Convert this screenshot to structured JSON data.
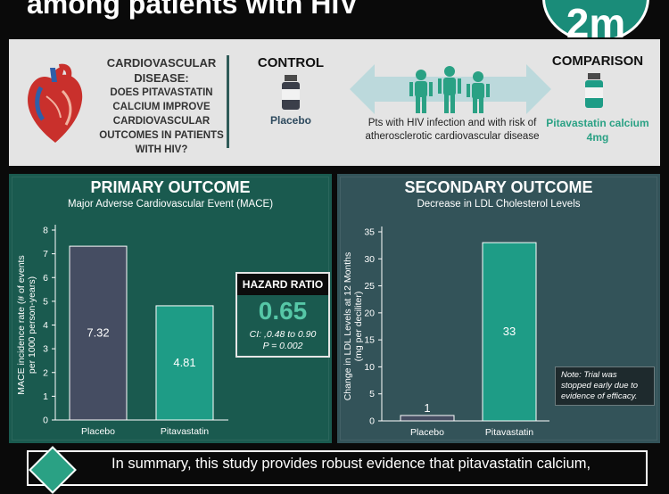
{
  "header": {
    "title": "among patients with HIV",
    "logo_text": "2m",
    "colors": {
      "background": "#0a0a0a",
      "logo": "#1a8c79"
    }
  },
  "design": {
    "question_title": "CARDIOVASCULAR DISEASE:",
    "question_text": "DOES PITAVASTATIN CALCIUM IMPROVE CARDIOVASCULAR OUTCOMES IN PATIENTS WITH HIV?",
    "control_label": "CONTROL",
    "control_drug": "Placebo",
    "population": "Pts with HIV infection and with risk of atherosclerotic cardiovascular disease",
    "comparison_label": "COMPARISON",
    "comparison_drug": "Pitavastatin calcium 4mg",
    "icons": [
      "heart-icon",
      "placebo-bottle-icon",
      "double-arrow-icon",
      "people-icon",
      "drug-bottle-icon"
    ]
  },
  "primary": {
    "title": "PRIMARY OUTCOME",
    "subtitle": "Major Adverse Cardiovascular Event (MACE)"
  },
  "secondary": {
    "title": "SECONDARY OUTCOME",
    "subtitle": "Decrease in LDL Cholesterol Levels"
  },
  "hazard": {
    "title": "HAZARD RATIO",
    "value": "0.65",
    "ci": "CI: ,0.48 to 0.90",
    "p": "P = 0.002"
  },
  "note": "Note: Trial was stopped early due to evidence of efficacy.",
  "summary": {
    "text": "In summary, this study provides robust evidence that pitavastatin calcium,"
  },
  "chart_data": [
    {
      "type": "bar",
      "title": "PRIMARY OUTCOME",
      "subtitle": "Major Adverse Cardiovascular Event (MACE)",
      "categories": [
        "Placebo",
        "Pitavastatin"
      ],
      "values": [
        7.32,
        4.81
      ],
      "value_labels": [
        "7.32",
        "4.81"
      ],
      "ylabel": "MACE incidence rate (# of events per 1000 person-years)",
      "ylabel_lines": [
        "MACE incidence rate (# of events",
        "per 1000 person-years)"
      ],
      "ylim": [
        0,
        8
      ],
      "yticks": [
        0,
        1,
        2,
        3,
        4,
        5,
        6,
        7,
        8
      ],
      "colors": [
        "#454d62",
        "#1e9c86"
      ],
      "grid": false
    },
    {
      "type": "bar",
      "title": "SECONDARY OUTCOME",
      "subtitle": "Decrease in LDL Cholesterol Levels",
      "categories": [
        "Placebo",
        "Pitavastatin"
      ],
      "values": [
        1,
        33
      ],
      "value_labels": [
        "1",
        "33"
      ],
      "ylabel": "Change in LDL Levels at 12 Months (mg per deciliter)",
      "ylabel_lines": [
        "Change in LDL Levels at 12 Months",
        "(mg per deciliter)"
      ],
      "ylim": [
        0,
        35
      ],
      "yticks": [
        0,
        5,
        10,
        15,
        20,
        25,
        30,
        35
      ],
      "colors": [
        "#454d62",
        "#1e9c86"
      ],
      "grid": false
    }
  ]
}
